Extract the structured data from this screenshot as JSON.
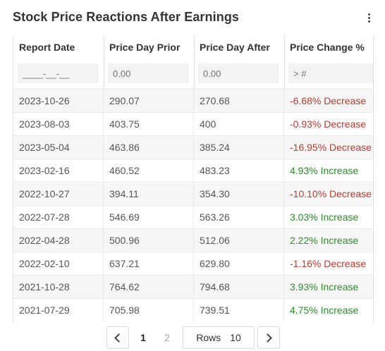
{
  "header": {
    "title": "Stock Price Reactions After Earnings",
    "menu_icon": "kebab-menu-icon"
  },
  "table": {
    "columns": [
      {
        "label": "Report Date",
        "filter_placeholder": "____-__-__"
      },
      {
        "label": "Price Day Prior",
        "filter_placeholder": "0.00"
      },
      {
        "label": "Price Day After",
        "filter_placeholder": "0.00"
      },
      {
        "label": "Price Change %",
        "filter_placeholder": "> #"
      }
    ],
    "rows": [
      {
        "date": "2023-10-26",
        "prior": "290.07",
        "after": "270.68",
        "change": "-6.68% Decrease",
        "direction": "decrease"
      },
      {
        "date": "2023-08-03",
        "prior": "403.75",
        "after": "400",
        "change": "-0.93% Decrease",
        "direction": "decrease"
      },
      {
        "date": "2023-05-04",
        "prior": "463.86",
        "after": "385.24",
        "change": "-16.95% Decrease",
        "direction": "decrease"
      },
      {
        "date": "2023-02-16",
        "prior": "460.52",
        "after": "483.23",
        "change": "4.93% Increase",
        "direction": "increase"
      },
      {
        "date": "2022-10-27",
        "prior": "394.11",
        "after": "354.30",
        "change": "-10.10% Decrease",
        "direction": "decrease"
      },
      {
        "date": "2022-07-28",
        "prior": "546.69",
        "after": "563.26",
        "change": "3.03% Increase",
        "direction": "increase"
      },
      {
        "date": "2022-04-28",
        "prior": "500.96",
        "after": "512.06",
        "change": "2.22% Increase",
        "direction": "increase"
      },
      {
        "date": "2022-02-10",
        "prior": "637.21",
        "after": "629.80",
        "change": "-1.16% Decrease",
        "direction": "decrease"
      },
      {
        "date": "2021-10-28",
        "prior": "764.62",
        "after": "794.68",
        "change": "3.93% Increase",
        "direction": "increase"
      },
      {
        "date": "2021-07-29",
        "prior": "705.98",
        "after": "739.51",
        "change": "4.75% Increase",
        "direction": "increase"
      }
    ]
  },
  "pagination": {
    "pages": [
      "1",
      "2"
    ],
    "current_page": "1",
    "rows_label": "Rows",
    "rows_value": "10",
    "prev_icon": "chevron-left-icon",
    "next_icon": "chevron-right-icon"
  },
  "colors": {
    "decrease": "#c0392b",
    "increase": "#2e8b2e",
    "title": "#333333"
  }
}
